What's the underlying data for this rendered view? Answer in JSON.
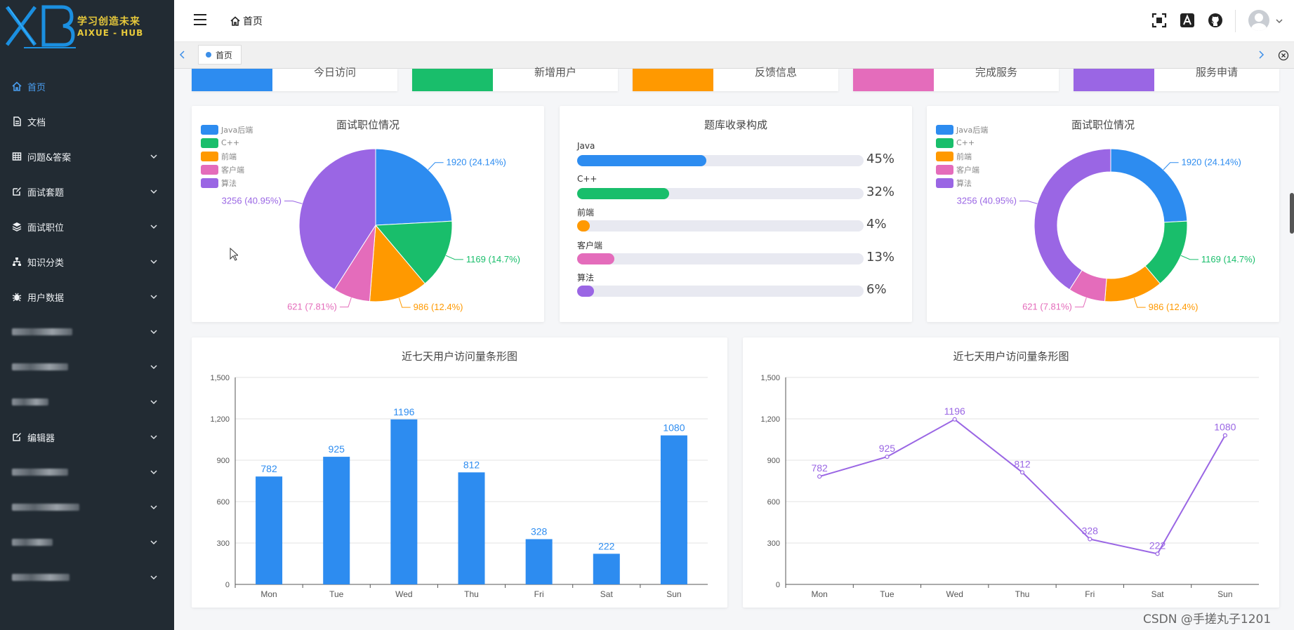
{
  "app": {
    "logo_cn": "学习创造未来",
    "logo_en": "AIXUE - HUB"
  },
  "sidebar": {
    "items": [
      {
        "label": "首页",
        "icon": "home-icon",
        "active": true,
        "expand": false
      },
      {
        "label": "文档",
        "icon": "document-icon",
        "active": false,
        "expand": false
      },
      {
        "label": "问题&答案",
        "icon": "table-icon",
        "active": false,
        "expand": true
      },
      {
        "label": "面试套题",
        "icon": "edit-icon",
        "active": false,
        "expand": true
      },
      {
        "label": "面试职位",
        "icon": "layers-icon",
        "active": false,
        "expand": true
      },
      {
        "label": "知识分类",
        "icon": "sitemap-icon",
        "active": false,
        "expand": true
      },
      {
        "label": "用户数据",
        "icon": "bug-icon",
        "active": false,
        "expand": true
      },
      {
        "label": "",
        "icon": "",
        "active": false,
        "expand": true,
        "blurred": 86
      },
      {
        "label": "",
        "icon": "",
        "active": false,
        "expand": true,
        "blurred": 80
      },
      {
        "label": "",
        "icon": "",
        "active": false,
        "expand": true,
        "blurred": 52
      },
      {
        "label": "编辑器",
        "icon": "edit-icon",
        "active": false,
        "expand": true
      },
      {
        "label": "",
        "icon": "",
        "active": false,
        "expand": true,
        "blurred": 80
      },
      {
        "label": "",
        "icon": "",
        "active": false,
        "expand": true,
        "blurred": 96
      },
      {
        "label": "",
        "icon": "",
        "active": false,
        "expand": true,
        "blurred": 58
      },
      {
        "label": "",
        "icon": "",
        "active": false,
        "expand": true,
        "blurred": 82
      }
    ]
  },
  "header": {
    "breadcrumb": "首页",
    "tab": "首页"
  },
  "stats": [
    {
      "label": "今日访问",
      "color": "#2d8cf0"
    },
    {
      "label": "新增用户",
      "color": "#19be6b"
    },
    {
      "label": "反馈信息",
      "color": "#ff9900"
    },
    {
      "label": "完成服务",
      "color": "#e46cbb"
    },
    {
      "label": "服务申请",
      "color": "#9a66e4"
    }
  ],
  "pie1": {
    "title": "面试职位情况"
  },
  "donut": {
    "title": "面试职位情况"
  },
  "progress": {
    "title": "题库收录构成",
    "items": [
      {
        "label": "Java",
        "value": 45,
        "color": "#2d8cf0"
      },
      {
        "label": "C++",
        "value": 32,
        "color": "#19be6b"
      },
      {
        "label": "前端",
        "value": 4,
        "color": "#ff9900"
      },
      {
        "label": "客户端",
        "value": 13,
        "color": "#e46cbb"
      },
      {
        "label": "算法",
        "value": 6,
        "color": "#9a66e4"
      }
    ]
  },
  "bar": {
    "title": "近七天用户访问量条形图"
  },
  "line": {
    "title": "近七天用户访问量条形图"
  },
  "chart_data": [
    {
      "type": "pie",
      "title": "面试职位情况",
      "categories": [
        "Java后端",
        "C++",
        "前端",
        "客户端",
        "算法"
      ],
      "values": [
        1920,
        1169,
        986,
        621,
        3256
      ],
      "labels": [
        "1920 (24.14%)",
        "1169 (14.7%)",
        "986 (12.4%)",
        "621 (7.81%)",
        "3256 (40.95%)"
      ],
      "colors": [
        "#2d8cf0",
        "#19be6b",
        "#ff9900",
        "#e46cbb",
        "#9a66e4"
      ],
      "legend": "top-left"
    },
    {
      "type": "pie",
      "title": "面试职位情况",
      "categories": [
        "Java后端",
        "C++",
        "前端",
        "客户端",
        "算法"
      ],
      "values": [
        1920,
        1169,
        986,
        621,
        3256
      ],
      "labels": [
        "1920 (24.14%)",
        "1169 (14.7%)",
        "986 (12.4%)",
        "621 (7.81%)",
        "3256 (40.95%)"
      ],
      "colors": [
        "#2d8cf0",
        "#19be6b",
        "#ff9900",
        "#e46cbb",
        "#9a66e4"
      ],
      "legend": "top-left",
      "donut": true
    },
    {
      "type": "bar",
      "title": "近七天用户访问量条形图",
      "categories": [
        "Mon",
        "Tue",
        "Wed",
        "Thu",
        "Fri",
        "Sat",
        "Sun"
      ],
      "values": [
        782,
        925,
        1196,
        812,
        328,
        222,
        1080
      ],
      "ylim": [
        0,
        1500
      ],
      "yticks": [
        "0",
        "300",
        "600",
        "900",
        "1,200",
        "1,500"
      ],
      "color": "#2d8cf0",
      "grid": true
    },
    {
      "type": "line",
      "title": "近七天用户访问量条形图",
      "categories": [
        "Mon",
        "Tue",
        "Wed",
        "Thu",
        "Fri",
        "Sat",
        "Sun"
      ],
      "values": [
        782,
        925,
        1196,
        812,
        328,
        222,
        1080
      ],
      "ylim": [
        0,
        1500
      ],
      "yticks": [
        "0",
        "300",
        "600",
        "900",
        "1,200",
        "1,500"
      ],
      "color": "#9a66e4",
      "grid": true
    }
  ],
  "footer": {
    "watermark": "CSDN @手搓丸子1201"
  }
}
